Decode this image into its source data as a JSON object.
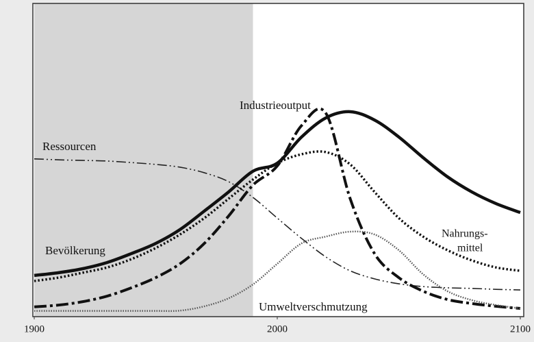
{
  "chart_data": {
    "type": "line",
    "x": [
      1900,
      1910,
      1920,
      1930,
      1940,
      1950,
      1960,
      1970,
      1980,
      1990,
      2000,
      2010,
      2020,
      2030,
      2040,
      2050,
      2060,
      2070,
      2080,
      2090,
      2100
    ],
    "xlim": [
      1900,
      2100
    ],
    "xticks": [
      1900,
      2000,
      2100
    ],
    "ylim": [
      0,
      100
    ],
    "highlight_xlim": [
      1900,
      1990
    ],
    "highlight_color": "#d6d6d6",
    "series": [
      {
        "name": "Ressourcen",
        "color": "#222222",
        "line_width": 1.6,
        "dash": "14 4 2 4 2 4",
        "values": [
          49.6,
          49.3,
          49.1,
          48.9,
          48.4,
          47.8,
          46.9,
          45.1,
          42.2,
          37.1,
          30.4,
          23.8,
          17.8,
          13.3,
          10.7,
          9.1,
          8.2,
          7.8,
          7.6,
          7.3,
          7.1
        ]
      },
      {
        "name": "Bevölkerung",
        "color": "#111111",
        "line_width": 4.5,
        "dash": "none",
        "values": [
          11.8,
          12.7,
          14.0,
          16.0,
          18.9,
          22.2,
          26.7,
          32.7,
          38.9,
          45.6,
          48.2,
          56.7,
          62.9,
          64.9,
          62.2,
          56.7,
          50.0,
          43.8,
          38.9,
          35.1,
          32.2
        ]
      },
      {
        "name": "Industrieoutput",
        "color": "#111111",
        "line_width": 4,
        "dash": "18 5 4 5",
        "values": [
          1.6,
          2.2,
          3.3,
          5.1,
          7.8,
          11.1,
          15.6,
          22.2,
          31.1,
          41.1,
          47.3,
          60.4,
          64.4,
          36.7,
          18.9,
          11.1,
          6.7,
          4.0,
          2.7,
          1.8,
          1.1
        ]
      },
      {
        "name": [
          "Nahrungs-",
          "mittel"
        ],
        "color": "#111111",
        "line_width": 3.5,
        "dash": "2.5 3",
        "values": [
          10.0,
          11.1,
          12.7,
          14.4,
          17.1,
          20.7,
          25.1,
          30.4,
          36.7,
          42.9,
          48.2,
          51.1,
          51.8,
          47.8,
          38.9,
          30.4,
          24.4,
          20.0,
          16.7,
          14.4,
          13.3
        ]
      },
      {
        "name": "Umweltverschmutzung",
        "color": "#555555",
        "line_width": 2.5,
        "dash": "1.5 2",
        "values": [
          0.3,
          0.3,
          0.3,
          0.3,
          0.3,
          0.3,
          0.4,
          1.8,
          4.4,
          8.9,
          15.6,
          22.2,
          24.4,
          26.0,
          25.1,
          20.0,
          12.2,
          6.7,
          3.8,
          2.2,
          1.1
        ]
      }
    ]
  }
}
